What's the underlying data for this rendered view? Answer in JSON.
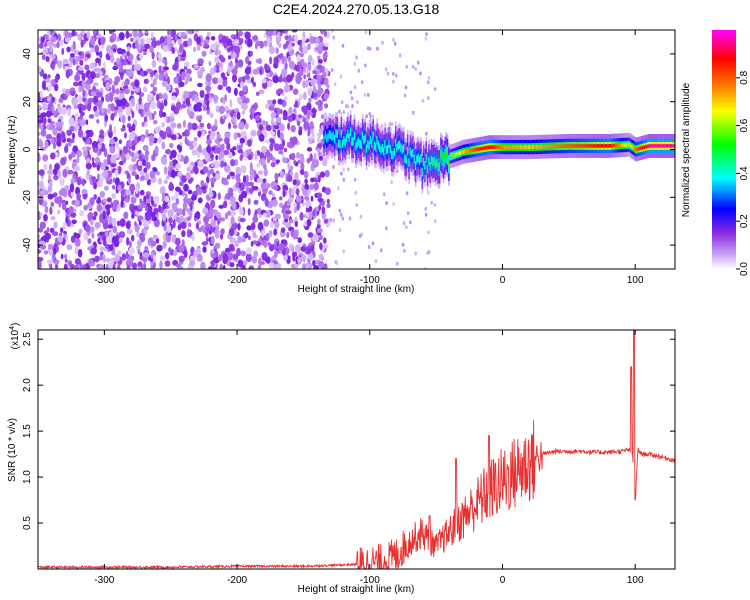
{
  "title": "C2E4.2024.270.05.13.G18",
  "chart_data": [
    {
      "type": "heatmap",
      "xlabel": "Height of straight line (km)",
      "ylabel": "Frequency (Hz)",
      "xlim": [
        -350,
        130
      ],
      "ylim": [
        -50,
        50
      ],
      "xticks": [
        -300,
        -200,
        -100,
        0,
        100
      ],
      "xtick_labels": [
        "-300",
        "-200",
        "-100",
        "0",
        "100"
      ],
      "yticks": [
        -40,
        -20,
        0,
        20,
        40
      ],
      "ytick_labels": [
        "-40",
        "-20",
        "0",
        "20",
        "40"
      ],
      "colorbar": {
        "label": "Normalized spectral amplitude",
        "range": [
          0,
          1
        ],
        "ticks": [
          0.0,
          0.2,
          0.4,
          0.6,
          0.8
        ],
        "tick_labels": [
          "0.0",
          "0.2",
          "0.4",
          "0.6",
          "0.8"
        ],
        "colors": [
          "#ffffff",
          "#8a2be2",
          "#0000ff",
          "#00ffff",
          "#00ff00",
          "#ffff00",
          "#ff8000",
          "#ff0000",
          "#ff00ff"
        ]
      },
      "noise_region": {
        "x": [
          -350,
          -135
        ],
        "amplitude": "low (0.1-0.3)"
      },
      "signal_trace": {
        "x": [
          -135,
          -120,
          -100,
          -80,
          -70,
          -60,
          -50,
          -40,
          -30,
          -20,
          -10,
          0,
          20,
          50,
          80,
          95,
          100,
          110,
          130
        ],
        "y": [
          4,
          5,
          3,
          0,
          -3,
          -7,
          -5,
          -3,
          -1,
          0,
          1,
          1,
          1,
          1.5,
          1.5,
          2,
          0,
          1.5,
          1.5
        ],
        "amplitude": [
          0.35,
          0.4,
          0.4,
          0.4,
          0.4,
          0.4,
          0.45,
          0.55,
          0.7,
          0.85,
          0.9,
          0.75,
          0.7,
          0.8,
          0.9,
          0.6,
          0.8,
          0.95,
          0.95
        ]
      },
      "grid": false
    },
    {
      "type": "line",
      "xlabel": "Height of straight line (km)",
      "ylabel": "SNR (10 * v/v)",
      "y_multiplier": "(x10^4)",
      "xlim": [
        -350,
        130
      ],
      "ylim": [
        0,
        2.6
      ],
      "xticks": [
        -300,
        -200,
        -100,
        0,
        100
      ],
      "xtick_labels": [
        "-300",
        "-200",
        "-100",
        "0",
        "100"
      ],
      "yticks": [
        0.5,
        1.0,
        1.5,
        2.0,
        2.5
      ],
      "ytick_labels": [
        "0.5",
        "1.0",
        "1.5",
        "2.0",
        "2.5"
      ],
      "color": "#e83030",
      "series": [
        {
          "x": [
            -350,
            -300,
            -250,
            -200,
            -150,
            -110,
            -90,
            -80,
            -70,
            -60,
            -55,
            -50,
            -40,
            -30,
            -20,
            -10,
            0,
            10,
            20,
            30,
            40,
            50,
            60,
            70,
            80,
            90,
            95,
            98,
            100,
            102,
            105,
            110,
            120,
            130
          ],
          "y": [
            0.02,
            0.02,
            0.02,
            0.03,
            0.03,
            0.05,
            0.08,
            0.15,
            0.3,
            0.4,
            0.3,
            0.25,
            0.4,
            0.55,
            0.7,
            0.85,
            0.95,
            1.05,
            1.15,
            1.25,
            1.28,
            1.28,
            1.28,
            1.27,
            1.27,
            1.28,
            1.3,
            1.25,
            0.7,
            1.3,
            1.25,
            1.25,
            1.22,
            1.18
          ],
          "spikes": [
            {
              "x": -55,
              "y": 0.58
            },
            {
              "x": -35,
              "y": 1.2
            },
            {
              "x": -10,
              "y": 1.45
            },
            {
              "x": 97,
              "y": 2.2
            },
            {
              "x": 99,
              "y": 2.6
            }
          ]
        }
      ],
      "grid": false
    }
  ]
}
